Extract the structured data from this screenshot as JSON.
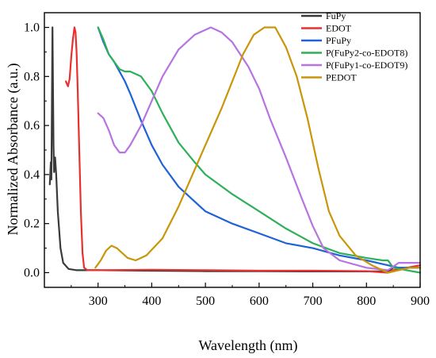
{
  "chart_data": {
    "type": "line",
    "xlabel": "Wavelength (nm)",
    "ylabel": "Normalized Absorbance (a.u.)",
    "xlim": [
      200,
      900
    ],
    "ylim": [
      -0.06,
      1.06
    ],
    "x_ticks": [
      "300",
      "400",
      "500",
      "600",
      "700",
      "800",
      "900"
    ],
    "y_ticks": [
      "0.0",
      "0.2",
      "0.4",
      "0.6",
      "0.8",
      "1.0"
    ],
    "legend_position": "top-right",
    "series": [
      {
        "name": "FuPy",
        "color": "#3a3a3a",
        "points": [
          [
            210,
            0.36
          ],
          [
            212,
            0.45
          ],
          [
            213,
            0.38
          ],
          [
            215,
            1.0
          ],
          [
            217,
            0.52
          ],
          [
            218,
            0.41
          ],
          [
            220,
            0.47
          ],
          [
            222,
            0.4
          ],
          [
            225,
            0.25
          ],
          [
            230,
            0.1
          ],
          [
            235,
            0.04
          ],
          [
            245,
            0.015
          ],
          [
            260,
            0.01
          ],
          [
            300,
            0.01
          ],
          [
            400,
            0.008
          ],
          [
            500,
            0.006
          ],
          [
            600,
            0.006
          ],
          [
            700,
            0.005
          ],
          [
            800,
            0.005
          ],
          [
            840,
            0.005
          ],
          [
            850,
            0.02
          ],
          [
            900,
            0.02
          ]
        ]
      },
      {
        "name": "EDOT",
        "color": "#e8302f",
        "points": [
          [
            240,
            0.78
          ],
          [
            244,
            0.76
          ],
          [
            247,
            0.79
          ],
          [
            250,
            0.88
          ],
          [
            253,
            0.95
          ],
          [
            256,
            1.0
          ],
          [
            258,
            0.98
          ],
          [
            260,
            0.9
          ],
          [
            262,
            0.75
          ],
          [
            265,
            0.5
          ],
          [
            268,
            0.25
          ],
          [
            271,
            0.08
          ],
          [
            274,
            0.02
          ],
          [
            280,
            0.01
          ],
          [
            300,
            0.01
          ],
          [
            400,
            0.012
          ],
          [
            500,
            0.01
          ],
          [
            600,
            0.008
          ],
          [
            700,
            0.008
          ],
          [
            800,
            0.006
          ],
          [
            840,
            0.0
          ],
          [
            850,
            0.01
          ],
          [
            900,
            0.03
          ]
        ]
      },
      {
        "name": "PFuPy",
        "color": "#1f62d6",
        "points": [
          [
            300,
            1.0
          ],
          [
            310,
            0.94
          ],
          [
            320,
            0.89
          ],
          [
            330,
            0.86
          ],
          [
            340,
            0.82
          ],
          [
            350,
            0.78
          ],
          [
            360,
            0.73
          ],
          [
            380,
            0.62
          ],
          [
            400,
            0.52
          ],
          [
            420,
            0.44
          ],
          [
            450,
            0.35
          ],
          [
            480,
            0.29
          ],
          [
            500,
            0.25
          ],
          [
            550,
            0.2
          ],
          [
            600,
            0.16
          ],
          [
            650,
            0.12
          ],
          [
            700,
            0.1
          ],
          [
            750,
            0.07
          ],
          [
            800,
            0.05
          ],
          [
            840,
            0.03
          ],
          [
            860,
            0.02
          ],
          [
            900,
            0.02
          ]
        ]
      },
      {
        "name": "P(FuPy2-co-EDOT8)",
        "color": "#2eb05a",
        "points": [
          [
            300,
            1.0
          ],
          [
            310,
            0.95
          ],
          [
            320,
            0.89
          ],
          [
            330,
            0.86
          ],
          [
            340,
            0.83
          ],
          [
            350,
            0.82
          ],
          [
            360,
            0.82
          ],
          [
            380,
            0.8
          ],
          [
            400,
            0.74
          ],
          [
            420,
            0.65
          ],
          [
            450,
            0.53
          ],
          [
            480,
            0.45
          ],
          [
            500,
            0.4
          ],
          [
            550,
            0.32
          ],
          [
            600,
            0.25
          ],
          [
            650,
            0.18
          ],
          [
            700,
            0.12
          ],
          [
            750,
            0.08
          ],
          [
            800,
            0.06
          ],
          [
            830,
            0.05
          ],
          [
            840,
            0.05
          ],
          [
            850,
            0.02
          ],
          [
            900,
            0.0
          ]
        ]
      },
      {
        "name": "P(FuPy1-co-EDOT9)",
        "color": "#b774e0",
        "points": [
          [
            300,
            0.65
          ],
          [
            310,
            0.63
          ],
          [
            320,
            0.58
          ],
          [
            330,
            0.52
          ],
          [
            340,
            0.49
          ],
          [
            350,
            0.49
          ],
          [
            360,
            0.52
          ],
          [
            380,
            0.6
          ],
          [
            400,
            0.7
          ],
          [
            420,
            0.8
          ],
          [
            450,
            0.91
          ],
          [
            480,
            0.97
          ],
          [
            500,
            0.99
          ],
          [
            510,
            1.0
          ],
          [
            530,
            0.98
          ],
          [
            550,
            0.94
          ],
          [
            580,
            0.84
          ],
          [
            600,
            0.75
          ],
          [
            620,
            0.63
          ],
          [
            650,
            0.47
          ],
          [
            680,
            0.3
          ],
          [
            700,
            0.19
          ],
          [
            720,
            0.1
          ],
          [
            750,
            0.05
          ],
          [
            800,
            0.02
          ],
          [
            840,
            0.01
          ],
          [
            860,
            0.04
          ],
          [
            900,
            0.04
          ]
        ]
      },
      {
        "name": "PEDOT",
        "color": "#c9960a",
        "points": [
          [
            295,
            0.02
          ],
          [
            305,
            0.05
          ],
          [
            315,
            0.09
          ],
          [
            325,
            0.11
          ],
          [
            335,
            0.1
          ],
          [
            345,
            0.08
          ],
          [
            355,
            0.06
          ],
          [
            370,
            0.05
          ],
          [
            390,
            0.07
          ],
          [
            420,
            0.14
          ],
          [
            450,
            0.27
          ],
          [
            480,
            0.42
          ],
          [
            500,
            0.52
          ],
          [
            530,
            0.67
          ],
          [
            550,
            0.78
          ],
          [
            570,
            0.89
          ],
          [
            590,
            0.97
          ],
          [
            610,
            1.0
          ],
          [
            630,
            1.0
          ],
          [
            650,
            0.92
          ],
          [
            670,
            0.8
          ],
          [
            690,
            0.63
          ],
          [
            710,
            0.43
          ],
          [
            730,
            0.25
          ],
          [
            750,
            0.15
          ],
          [
            780,
            0.07
          ],
          [
            810,
            0.03
          ],
          [
            840,
            0.0
          ],
          [
            860,
            0.01
          ],
          [
            880,
            0.02
          ],
          [
            900,
            0.02
          ]
        ]
      }
    ]
  }
}
